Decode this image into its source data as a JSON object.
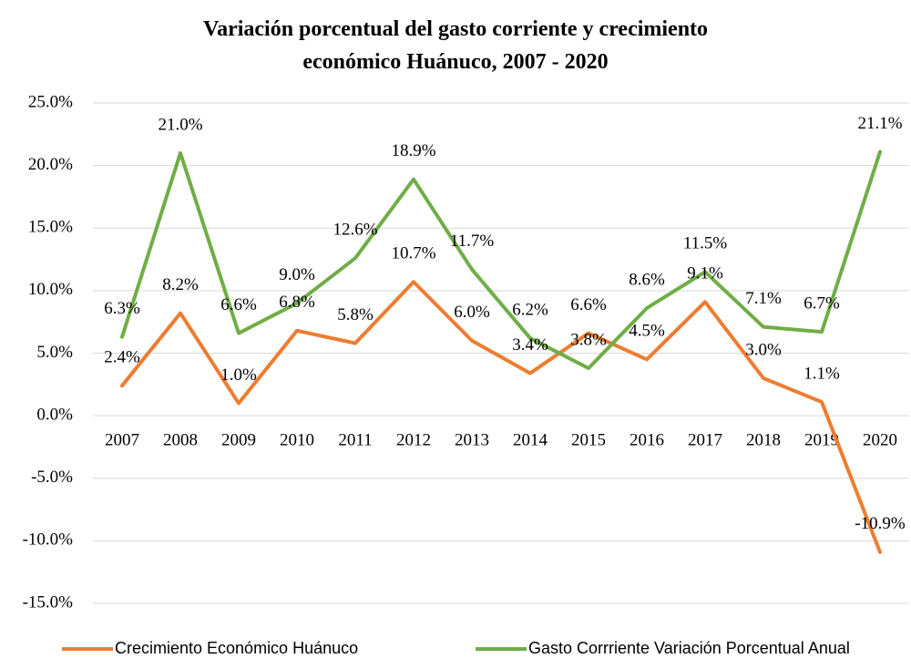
{
  "chart_data": {
    "type": "line",
    "title": "Variación porcentual del gasto corriente y crecimiento económico Huánuco, 2007 - 2020",
    "categories": [
      "2007",
      "2008",
      "2009",
      "2010",
      "2011",
      "2012",
      "2013",
      "2014",
      "2015",
      "2016",
      "2017",
      "2018",
      "2019",
      "2020"
    ],
    "series": [
      {
        "name": "Crecimiento Económico Huánuco",
        "color": "#ed7d31",
        "values": [
          2.4,
          8.2,
          1.0,
          6.8,
          5.8,
          10.7,
          6.0,
          3.4,
          6.6,
          4.5,
          9.1,
          3.0,
          1.1,
          -10.9
        ],
        "value_labels": [
          "2.4%",
          "8.2%",
          "1.0%",
          "6.8%",
          "5.8%",
          "10.7%",
          "6.0%",
          "3.4%",
          "6.6%",
          "4.5%",
          "9.1%",
          "3.0%",
          "1.1%",
          "-10.9%"
        ]
      },
      {
        "name": "Gasto Corrriente Variación Porcentual Anual",
        "color": "#70ad47",
        "values": [
          6.3,
          21.0,
          6.6,
          9.0,
          12.6,
          18.9,
          11.7,
          6.2,
          3.8,
          8.6,
          11.5,
          7.1,
          6.7,
          21.1
        ],
        "value_labels": [
          "6.3%",
          "21.0%",
          "6.6%",
          "9.0%",
          "12.6%",
          "18.9%",
          "11.7%",
          "6.2%",
          "3.8%",
          "8.6%",
          "11.5%",
          "7.1%",
          "6.7%",
          "21.1%"
        ]
      }
    ],
    "ylim": [
      -15,
      25
    ],
    "yticks": [
      {
        "value": -15,
        "label": "-15.0%"
      },
      {
        "value": -10,
        "label": "-10.0%"
      },
      {
        "value": -5,
        "label": "-5.0%"
      },
      {
        "value": 0,
        "label": "0.0%"
      },
      {
        "value": 5,
        "label": "5.0%"
      },
      {
        "value": 10,
        "label": "10.0%"
      },
      {
        "value": 15,
        "label": "15.0%"
      },
      {
        "value": 20,
        "label": "20.0%"
      },
      {
        "value": 25,
        "label": "25.0%"
      }
    ],
    "grid": true,
    "legend": "bottom"
  }
}
